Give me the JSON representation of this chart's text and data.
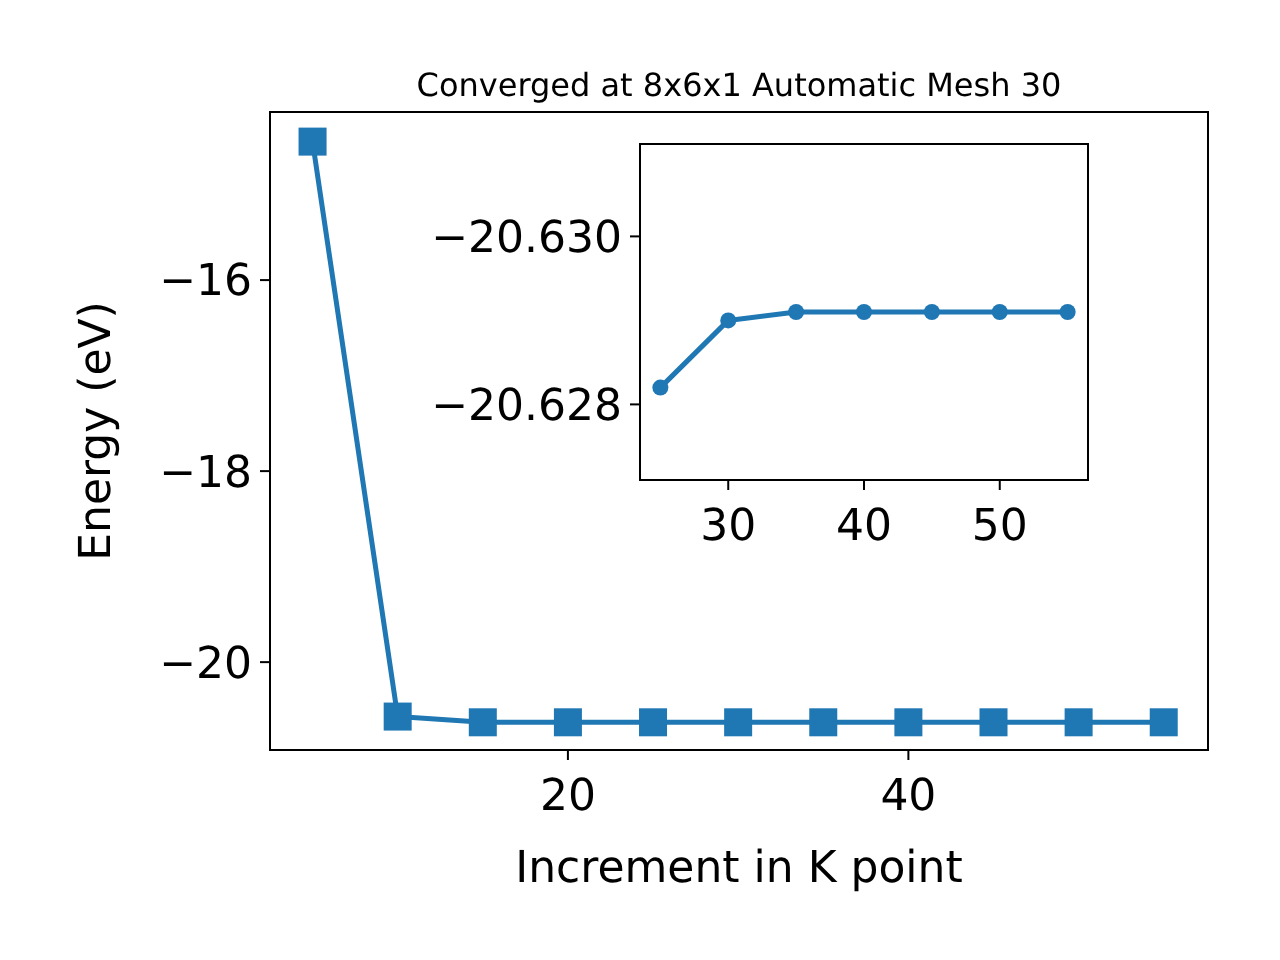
{
  "chart_data": [
    {
      "type": "line",
      "title": "Converged at 8x6x1 Automatic Mesh 30",
      "xlabel": "Increment in K point",
      "ylabel": "Energy (eV)",
      "x": [
        5,
        10,
        15,
        20,
        25,
        30,
        35,
        40,
        45,
        50,
        55
      ],
      "series": [
        {
          "color": "#1f77b4",
          "values": [
            -14.55,
            -20.57,
            -20.63,
            -20.63,
            -20.63,
            -20.63,
            -20.63,
            -20.63,
            -20.63,
            -20.63,
            -20.63
          ]
        }
      ],
      "marker": "square",
      "xlim": [
        2.5,
        57.6
      ],
      "ylim": [
        -20.92,
        -14.24
      ],
      "xticks": [
        20,
        40
      ],
      "yticks": [
        -16,
        -18,
        -20
      ],
      "grid": false
    },
    {
      "type": "line",
      "x": [
        25,
        30,
        35,
        40,
        45,
        50,
        55
      ],
      "series": [
        {
          "color": "#1f77b4",
          "values": [
            -20.6282,
            -20.629,
            -20.6291,
            -20.6291,
            -20.6291,
            -20.6291,
            -20.6291
          ]
        }
      ],
      "marker": "circle",
      "xlim": [
        23.5,
        56.5
      ],
      "ylim": [
        -20.6271,
        -20.6311
      ],
      "xticks": [
        30,
        40,
        50
      ],
      "yticks": [
        {
          "value": -20.63,
          "label": "−20.630"
        },
        {
          "value": -20.628,
          "label": "−20.628"
        }
      ],
      "grid": false
    }
  ]
}
